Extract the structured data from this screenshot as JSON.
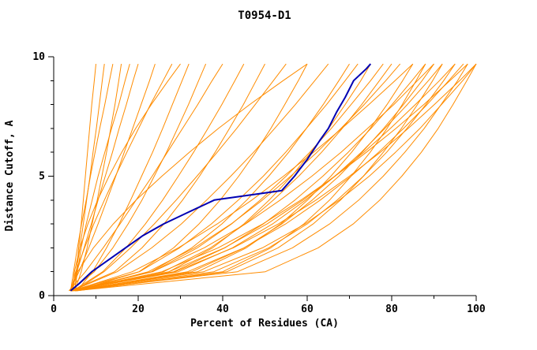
{
  "chart_data": {
    "type": "line",
    "title": "T0954-D1",
    "xlabel": "Percent of Residues (CA)",
    "ylabel": "Distance Cutoff, A",
    "xlim": [
      0,
      100
    ],
    "ylim": [
      0,
      10
    ],
    "x_ticks_major": [
      0,
      20,
      40,
      60,
      80,
      100
    ],
    "x_tick_minor_step": 10,
    "y_ticks_major": [
      0,
      5,
      10
    ],
    "y_tick_minor_step": 1,
    "grid": false,
    "legend": "none",
    "colors": {
      "model_lines": "#ff8c00",
      "highlight_line": "#0000b3",
      "axis": "#000000",
      "background": "#ffffff"
    },
    "y_samples": [
      0.2,
      1,
      2,
      3,
      4,
      5,
      6,
      7,
      8,
      9,
      9.7
    ],
    "series_x": [
      [
        5,
        5.4,
        5.9,
        6.5,
        7,
        7.5,
        8,
        8.5,
        9,
        9.6,
        10
      ],
      [
        4.5,
        5.3,
        6.2,
        7,
        7.8,
        8.6,
        9.3,
        10.1,
        10.8,
        11.5,
        12
      ],
      [
        4,
        4.7,
        5.6,
        6.6,
        7.7,
        8.7,
        9.8,
        10.9,
        12.1,
        13.2,
        14
      ],
      [
        5,
        6.5,
        7.9,
        9.1,
        10.3,
        11.4,
        12.5,
        13.5,
        14.5,
        15.4,
        16
      ],
      [
        4.2,
        5.5,
        7.2,
        8.9,
        10.5,
        12.2,
        13.9,
        15.5,
        17.2,
        18.8,
        20
      ],
      [
        3.8,
        6,
        8.3,
        10.5,
        12.6,
        14.7,
        16.7,
        18.7,
        20.7,
        22.7,
        24
      ],
      [
        4,
        5.2,
        7.3,
        9.5,
        12,
        14.6,
        17.3,
        20.1,
        22.9,
        25.9,
        28
      ],
      [
        5.5,
        9.2,
        12.5,
        15.5,
        18.2,
        20.8,
        23.4,
        25.8,
        28.1,
        30.4,
        32
      ],
      [
        4,
        9.6,
        14,
        17.6,
        20.9,
        23.8,
        26.7,
        29.3,
        31.9,
        34.3,
        36
      ],
      [
        3.6,
        7.5,
        11.7,
        15.7,
        19.5,
        23.3,
        26.9,
        30.5,
        34.1,
        37.5,
        40
      ],
      [
        4.5,
        11.6,
        17.1,
        21.7,
        25.8,
        29.5,
        33.1,
        36.5,
        39.8,
        42.9,
        45
      ],
      [
        4,
        14.4,
        20.9,
        26.1,
        30.5,
        34.5,
        38.2,
        41.6,
        44.9,
        47.9,
        50
      ],
      [
        5,
        11.9,
        18.2,
        23.8,
        29,
        33.9,
        38.7,
        43.3,
        47.7,
        52,
        55
      ],
      [
        4,
        20.2,
        28.4,
        34.4,
        39.4,
        43.8,
        47.8,
        51.4,
        54.7,
        57.9,
        60
      ],
      [
        4.3,
        15,
        23.2,
        30.2,
        36.2,
        41.9,
        47.3,
        52.3,
        57.2,
        61.8,
        65
      ],
      [
        4,
        23.1,
        32.7,
        39.8,
        45.7,
        50.9,
        55.6,
        59.8,
        63.8,
        67.5,
        70
      ],
      [
        5.2,
        20.3,
        29.8,
        37.3,
        43.7,
        49.6,
        54.9,
        59.8,
        64.6,
        69,
        72
      ],
      [
        4,
        27.3,
        37.6,
        45,
        51,
        56.3,
        60.9,
        65.1,
        69,
        72.7,
        75
      ],
      [
        4.6,
        23.4,
        34,
        42.1,
        48.9,
        55,
        60.6,
        65.7,
        70.4,
        75,
        78
      ],
      [
        4,
        26,
        37.1,
        45.3,
        52,
        58,
        63.4,
        68.3,
        72.9,
        77.1,
        80
      ],
      [
        5,
        22.4,
        33.3,
        42,
        49.4,
        56.1,
        62.3,
        68,
        73.5,
        78.6,
        82
      ],
      [
        4,
        34.1,
        45.6,
        53.7,
        60.1,
        65.6,
        70.5,
        74.9,
        78.9,
        82.6,
        85
      ],
      [
        4.4,
        18.6,
        29.5,
        38.7,
        46.9,
        54.4,
        61.5,
        68.2,
        74.6,
        80.8,
        85
      ],
      [
        4,
        28.4,
        40.5,
        49.6,
        57.1,
        63.7,
        69.7,
        75.1,
        80.1,
        84.8,
        88
      ],
      [
        5.3,
        40,
        51.4,
        59.2,
        65.3,
        70.4,
        74.9,
        78.9,
        82.5,
        85.8,
        88
      ],
      [
        4,
        23.4,
        35.6,
        45.4,
        53.6,
        61.1,
        68,
        74.3,
        80.5,
        86.1,
        90
      ],
      [
        4.8,
        32.7,
        45.1,
        54,
        61.2,
        67.5,
        73,
        78.1,
        82.8,
        87.2,
        90
      ],
      [
        4,
        29.5,
        42.3,
        51.8,
        59.6,
        66.6,
        72.8,
        78.4,
        83.7,
        88.7,
        92
      ],
      [
        5.5,
        41,
        53.1,
        61.4,
        67.9,
        73.3,
        78,
        82.3,
        86.1,
        89.7,
        92
      ],
      [
        4,
        27.3,
        40.4,
        50.5,
        59,
        66.5,
        73.4,
        79.7,
        85.6,
        91.3,
        95
      ],
      [
        4.2,
        37.9,
        50.9,
        60,
        67.1,
        73.3,
        78.8,
        83.6,
        88.1,
        92.3,
        95
      ],
      [
        5,
        31.7,
        45,
        54.9,
        63.1,
        70.4,
        76.9,
        82.8,
        88.4,
        93.5,
        97
      ],
      [
        4,
        43.5,
        56.5,
        65.3,
        72.2,
        78,
        83.1,
        87.7,
        91.7,
        95.6,
        98
      ],
      [
        4.5,
        25.6,
        38.9,
        49.5,
        58.5,
        66.6,
        74,
        81,
        87.6,
        93.8,
        98
      ],
      [
        4,
        35.5,
        49.4,
        59.5,
        67.6,
        74.7,
        80.9,
        86.7,
        91.8,
        96.8,
        100
      ],
      [
        5,
        50.1,
        62.6,
        70.9,
        77.2,
        82.4,
        87,
        91,
        94.5,
        97.8,
        100
      ],
      [
        4.2,
        28.7,
        42.5,
        53.2,
        62.1,
        70,
        77.3,
        83.9,
        90.1,
        96.1,
        100
      ],
      [
        4,
        5.7,
        9.4,
        14.1,
        19.5,
        25.6,
        32.1,
        39,
        46.4,
        54.3,
        60
      ],
      [
        4.5,
        4.9,
        6.2,
        8.1,
        10.4,
        13.1,
        16.1,
        19.4,
        23.1,
        27.1,
        30
      ],
      [
        5,
        5.6,
        6.5,
        7.7,
        9.1,
        10.5,
        12.1,
        13.7,
        15.4,
        16.9,
        18
      ]
    ],
    "highlight_points": [
      [
        4,
        0.2
      ],
      [
        6,
        0.5
      ],
      [
        9,
        1
      ],
      [
        13,
        1.5
      ],
      [
        17,
        2
      ],
      [
        21,
        2.5
      ],
      [
        26,
        3
      ],
      [
        32,
        3.5
      ],
      [
        38,
        4
      ],
      [
        54,
        4.4
      ],
      [
        57,
        5
      ],
      [
        60,
        5.7
      ],
      [
        63,
        6.5
      ],
      [
        65,
        7
      ],
      [
        67,
        7.7
      ],
      [
        69,
        8.3
      ],
      [
        71,
        9
      ],
      [
        74,
        9.5
      ],
      [
        75,
        9.7
      ]
    ]
  }
}
